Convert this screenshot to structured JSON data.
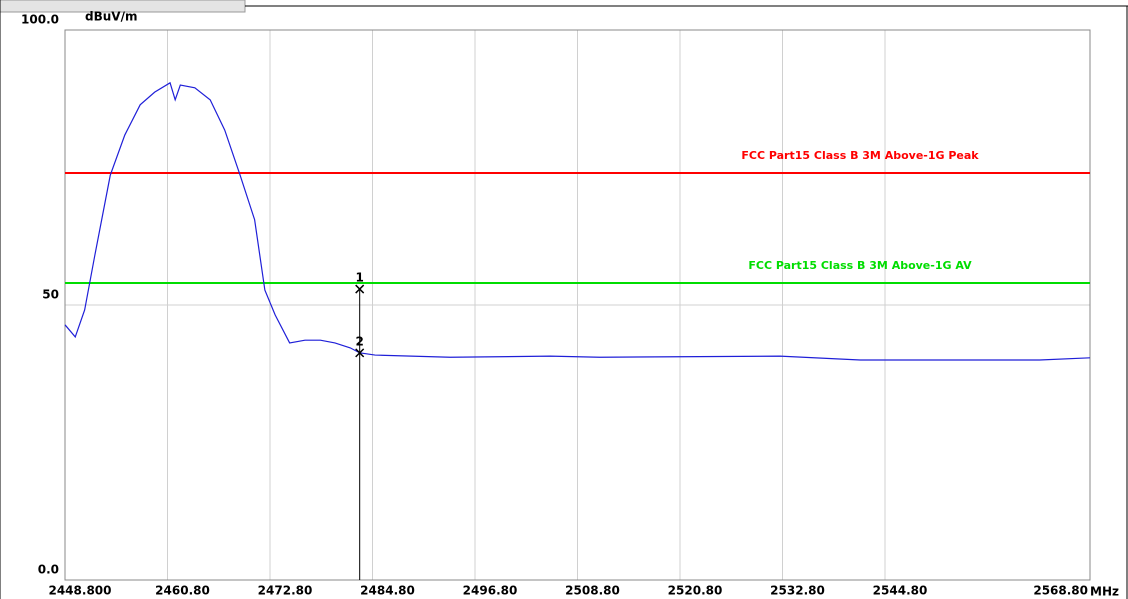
{
  "chart_data": {
    "type": "line",
    "y_unit": "dBuV/m",
    "x_unit": "MHz",
    "xlim": [
      2448.8,
      2568.8
    ],
    "ylim": [
      0,
      100
    ],
    "xticks": [
      {
        "value": 2448.8,
        "label": "2448.800"
      },
      {
        "value": 2460.8,
        "label": "2460.80"
      },
      {
        "value": 2472.8,
        "label": "2472.80"
      },
      {
        "value": 2484.8,
        "label": "2484.80"
      },
      {
        "value": 2496.8,
        "label": "2496.80"
      },
      {
        "value": 2508.8,
        "label": "2508.80"
      },
      {
        "value": 2520.8,
        "label": "2520.80"
      },
      {
        "value": 2532.8,
        "label": "2532.80"
      },
      {
        "value": 2544.8,
        "label": "2544.80"
      },
      {
        "value": 2568.8,
        "label": "2568.80"
      }
    ],
    "yticks": [
      {
        "value": 100,
        "label": "100.0"
      },
      50,
      {
        "value": 0,
        "label": "0.0"
      }
    ],
    "grid": true,
    "series": [
      {
        "color": "#1f1fd8",
        "x": [
          2448.8,
          2450.0,
          2451.1,
          2452.3,
          2454.1,
          2455.8,
          2457.6,
          2459.3,
          2461.1,
          2461.7,
          2462.3,
          2464.0,
          2465.8,
          2467.5,
          2469.3,
          2471.0,
          2472.2,
          2473.4,
          2475.1,
          2476.9,
          2478.7,
          2480.4,
          2482.2,
          2483.3,
          2485.1,
          2493.9,
          2505.6,
          2511.4,
          2532.5,
          2541.9,
          2562.9,
          2568.8
        ],
        "values": [
          46.4,
          44.2,
          49.1,
          59.1,
          73.6,
          80.9,
          86.4,
          88.7,
          90.4,
          87.3,
          90.0,
          89.5,
          87.3,
          81.8,
          73.6,
          65.5,
          52.7,
          48.2,
          43.1,
          43.6,
          43.6,
          43.1,
          42.2,
          41.3,
          40.9,
          40.5,
          40.7,
          40.5,
          40.7,
          40.0,
          40.0,
          40.4
        ]
      }
    ],
    "limits": [
      {
        "label": "FCC Part15 Class B 3M Above-1G Peak",
        "color": "#ff0000",
        "value": 74
      },
      {
        "label": "FCC Part15 Class B 3M Above-1G AV",
        "color": "#00dd00",
        "value": 54
      }
    ],
    "markers": [
      {
        "label": "1",
        "x": 2483.3,
        "y": 52.9
      },
      {
        "label": "2",
        "x": 2483.3,
        "y": 41.3
      }
    ]
  }
}
